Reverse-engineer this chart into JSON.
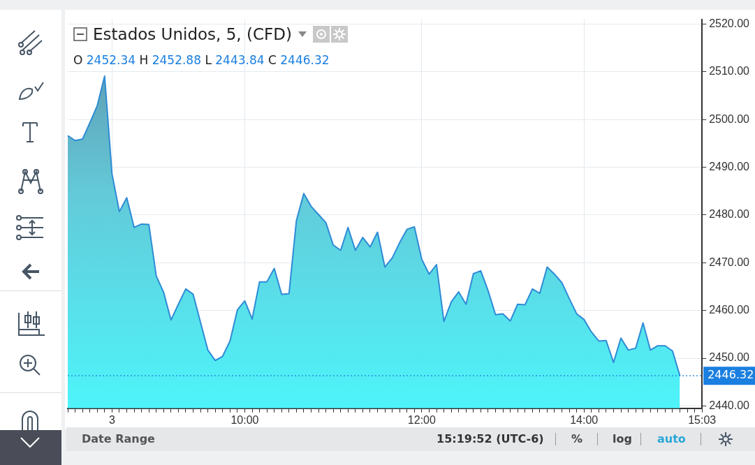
{
  "chart_data": {
    "type": "area",
    "title": "Estados Unidos, 5, (CFD)",
    "subtitle": "O 2452.34 H 2452.88 L 2443.84 C 2446.32",
    "categories": [
      null,
      null,
      null,
      null,
      null,
      null,
      "3",
      null,
      null,
      null,
      null,
      null,
      null,
      null,
      null,
      null,
      null,
      null,
      null,
      null,
      null,
      null,
      null,
      null,
      "10:00",
      null,
      null,
      null,
      null,
      null,
      null,
      null,
      null,
      null,
      null,
      null,
      null,
      null,
      null,
      null,
      null,
      null,
      null,
      null,
      null,
      null,
      null,
      null,
      "12:00",
      null,
      null,
      null,
      null,
      null,
      null,
      null,
      null,
      null,
      null,
      null,
      null,
      null,
      null,
      null,
      null,
      null,
      null,
      null,
      null,
      null,
      "14:00",
      null,
      null,
      null,
      null,
      null,
      null,
      null,
      null,
      null,
      null,
      null,
      null,
      null,
      null,
      null,
      "15:03"
    ],
    "series": [
      {
        "color": "#2e8bd6",
        "values": [
          2496.6,
          2495.6,
          2495.9,
          2499.3,
          2502.9,
          2509.1,
          2488.6,
          2480.7,
          2483.6,
          2477.4,
          2478.1,
          2478.0,
          2467.2,
          2463.8,
          2458.0,
          2461.3,
          2464.5,
          2463.4,
          2457.5,
          2451.7,
          2449.5,
          2450.4,
          2453.6,
          2460.1,
          2462.0,
          2458.2,
          2466.0,
          2466.0,
          2468.8,
          2463.4,
          2463.5,
          2478.8,
          2484.5,
          2481.8,
          2480.1,
          2478.4,
          2473.7,
          2472.6,
          2477.4,
          2472.6,
          2475.3,
          2473.3,
          2476.4,
          2469.1,
          2471.0,
          2474.2,
          2477.0,
          2477.5,
          2470.7,
          2467.6,
          2469.6,
          2457.7,
          2461.8,
          2463.9,
          2461.3,
          2467.7,
          2468.3,
          2464.1,
          2459.1,
          2459.3,
          2457.8,
          2461.3,
          2461.2,
          2464.5,
          2463.6,
          2469.1,
          2467.6,
          2465.8,
          2462.5,
          2459.3,
          2458.1,
          2455.5,
          2453.6,
          2453.7,
          2449.1,
          2454.2,
          2451.7,
          2452.1,
          2457.4,
          2451.7,
          2452.6,
          2452.6,
          2451.5,
          2446.32,
          null,
          null,
          null
        ]
      }
    ],
    "ylim": [
      2439.5,
      2521
    ],
    "yticks": [
      {
        "value": 2440,
        "label": "2440.00"
      },
      {
        "value": 2450,
        "label": "2450.00"
      },
      {
        "value": 2460,
        "label": "2460.00"
      },
      {
        "value": 2470,
        "label": "2470.00"
      },
      {
        "value": 2480,
        "label": "2480.00"
      },
      {
        "value": 2490,
        "label": "2490.00"
      },
      {
        "value": 2500,
        "label": "2500.00"
      },
      {
        "value": 2510,
        "label": "2510.00"
      },
      {
        "value": 2520,
        "label": "2520.00"
      }
    ],
    "ref_lines": [
      {
        "axis": "y",
        "value": 2446.32,
        "label": "2446.32",
        "color": "#1a7fe0",
        "line_style": "dotted"
      }
    ],
    "annotations": [
      "Date Range",
      "15:19:52 (UTC-6)",
      "%",
      "log",
      "auto"
    ],
    "grid": true,
    "marker": "none",
    "line_style": "solid"
  }
}
